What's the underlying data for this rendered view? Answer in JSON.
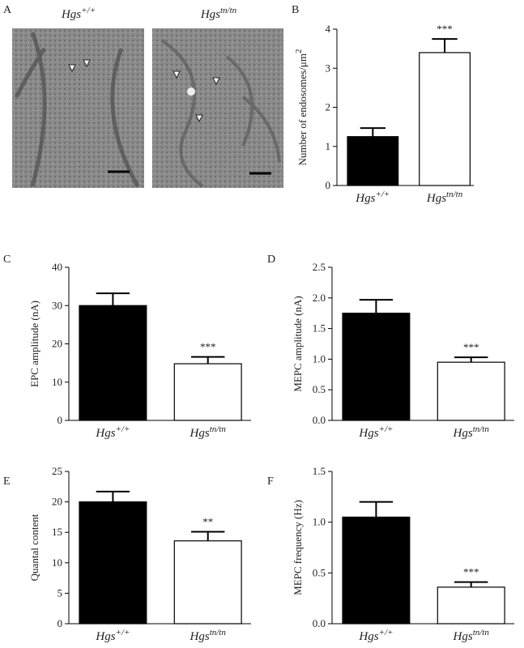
{
  "panel_a": {
    "panel_label": "A",
    "images": [
      {
        "gene": "Hgs",
        "sup": "+/+"
      },
      {
        "gene": "Hgs",
        "sup": "tn/tn"
      }
    ]
  },
  "chart_data": [
    {
      "type": "bar",
      "panel_label": "B",
      "ylabel": "Number of endosomes/μm",
      "ylabel_sup": "2",
      "categories": [
        "Hgs",
        "Hgs"
      ],
      "category_superscripts": [
        "+/+",
        "tn/tn"
      ],
      "values": [
        1.25,
        3.4
      ],
      "errors": [
        0.22,
        0.35
      ],
      "colors": [
        "#000000",
        "#ffffff"
      ],
      "annotations": [
        null,
        "***"
      ],
      "ylim": [
        0,
        4
      ],
      "yticks": [
        0,
        1,
        2,
        3,
        4
      ]
    },
    {
      "type": "bar",
      "panel_label": "C",
      "ylabel": "EPC amplitude (nA)",
      "categories": [
        "Hgs",
        "Hgs"
      ],
      "category_superscripts": [
        "+/+",
        "tn/tn"
      ],
      "values": [
        30,
        14.8
      ],
      "errors": [
        3.2,
        1.8
      ],
      "colors": [
        "#000000",
        "#ffffff"
      ],
      "annotations": [
        null,
        "***"
      ],
      "ylim": [
        0,
        40
      ],
      "yticks": [
        0,
        10,
        20,
        30,
        40
      ]
    },
    {
      "type": "bar",
      "panel_label": "D",
      "ylabel": "MEPC amplitude (nA)",
      "categories": [
        "Hgs",
        "Hgs"
      ],
      "category_superscripts": [
        "+/+",
        "tn/tn"
      ],
      "values": [
        1.75,
        0.95
      ],
      "errors": [
        0.22,
        0.08
      ],
      "colors": [
        "#000000",
        "#ffffff"
      ],
      "annotations": [
        null,
        "***"
      ],
      "ylim": [
        0,
        2.5
      ],
      "yticks": [
        {
          "value": 0,
          "label": "0.0"
        },
        0.5,
        {
          "value": 1,
          "label": "1.0"
        },
        1.5,
        {
          "value": 2,
          "label": "2.0"
        },
        2.5
      ]
    },
    {
      "type": "bar",
      "panel_label": "E",
      "ylabel": "Quantal content",
      "categories": [
        "Hgs",
        "Hgs"
      ],
      "category_superscripts": [
        "+/+",
        "tn/tn"
      ],
      "values": [
        20,
        13.6
      ],
      "errors": [
        1.7,
        1.5
      ],
      "colors": [
        "#000000",
        "#ffffff"
      ],
      "annotations": [
        null,
        "**"
      ],
      "ylim": [
        0,
        25
      ],
      "yticks": [
        0,
        5,
        10,
        15,
        20,
        25
      ]
    },
    {
      "type": "bar",
      "panel_label": "F",
      "ylabel": "MEPC frequency (Hz)",
      "categories": [
        "Hgs",
        "Hgs"
      ],
      "category_superscripts": [
        "+/+",
        "tn/tn"
      ],
      "values": [
        1.05,
        0.36
      ],
      "errors": [
        0.15,
        0.05
      ],
      "colors": [
        "#000000",
        "#ffffff"
      ],
      "annotations": [
        null,
        "***"
      ],
      "ylim": [
        0,
        1.5
      ],
      "yticks": [
        {
          "value": 0,
          "label": "0.0"
        },
        0.5,
        {
          "value": 1,
          "label": "1.0"
        },
        1.5
      ]
    }
  ]
}
